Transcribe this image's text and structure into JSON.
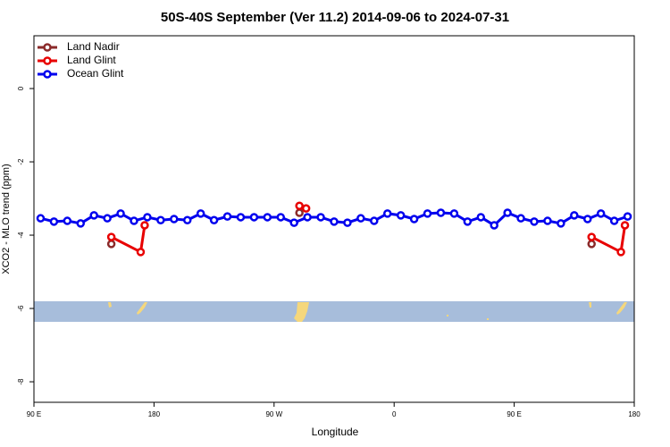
{
  "chart_data": {
    "type": "line",
    "title": "50S-40S September (Ver 11.2)   2014-09-06 to 2024-07-31",
    "xlabel": "Longitude",
    "ylabel": "XCO2 - MLO trend (ppm)",
    "xlim": [
      90,
      540
    ],
    "ylim": [
      -8.56,
      1.44
    ],
    "xticks": [
      {
        "value": 90,
        "label": "90 E"
      },
      180,
      {
        "value": 270,
        "label": "90 W"
      },
      {
        "value": 360,
        "label": "0"
      },
      {
        "value": 450,
        "label": "90 E"
      },
      {
        "value": 540,
        "label": "180"
      }
    ],
    "yticks": [
      0,
      -2,
      -4,
      -6,
      -8
    ],
    "legend": "top-left",
    "series": [
      {
        "name": "Land Nadir",
        "color": "#8b2a2a",
        "x": [
          148,
          null,
          289,
          null,
          508
        ],
        "values": [
          -4.24,
          null,
          -3.39,
          null,
          -4.24
        ]
      },
      {
        "name": "Land Glint",
        "color": "#e80000",
        "x": [
          148,
          170,
          173,
          null,
          289,
          294,
          null,
          508,
          530,
          533
        ],
        "values": [
          -4.05,
          -4.46,
          -3.73,
          null,
          -3.2,
          -3.27,
          null,
          -4.05,
          -4.46,
          -3.73
        ]
      },
      {
        "name": "Ocean Glint",
        "color": "#0000ee",
        "x": [
          95,
          105,
          115,
          125,
          135,
          145,
          155,
          165,
          175,
          185,
          195,
          205,
          215,
          225,
          235,
          245,
          255,
          265,
          275,
          285,
          295,
          305,
          315,
          325,
          335,
          345,
          355,
          365,
          375,
          385,
          395,
          405,
          415,
          425,
          435,
          445,
          455,
          465,
          475,
          485,
          495,
          505,
          515,
          525,
          535
        ],
        "values": [
          -3.54,
          -3.63,
          -3.61,
          -3.68,
          -3.46,
          -3.54,
          -3.41,
          -3.61,
          -3.51,
          -3.59,
          -3.56,
          -3.59,
          -3.41,
          -3.59,
          -3.49,
          -3.51,
          -3.51,
          -3.51,
          -3.51,
          -3.66,
          -3.51,
          -3.51,
          -3.63,
          -3.66,
          -3.54,
          -3.61,
          -3.41,
          -3.46,
          -3.56,
          -3.41,
          -3.39,
          -3.41,
          -3.63,
          -3.51,
          -3.73,
          -3.39,
          -3.54,
          -3.63,
          -3.61,
          -3.68,
          -3.46,
          -3.56,
          -3.41,
          -3.61,
          -3.49
        ]
      }
    ]
  }
}
